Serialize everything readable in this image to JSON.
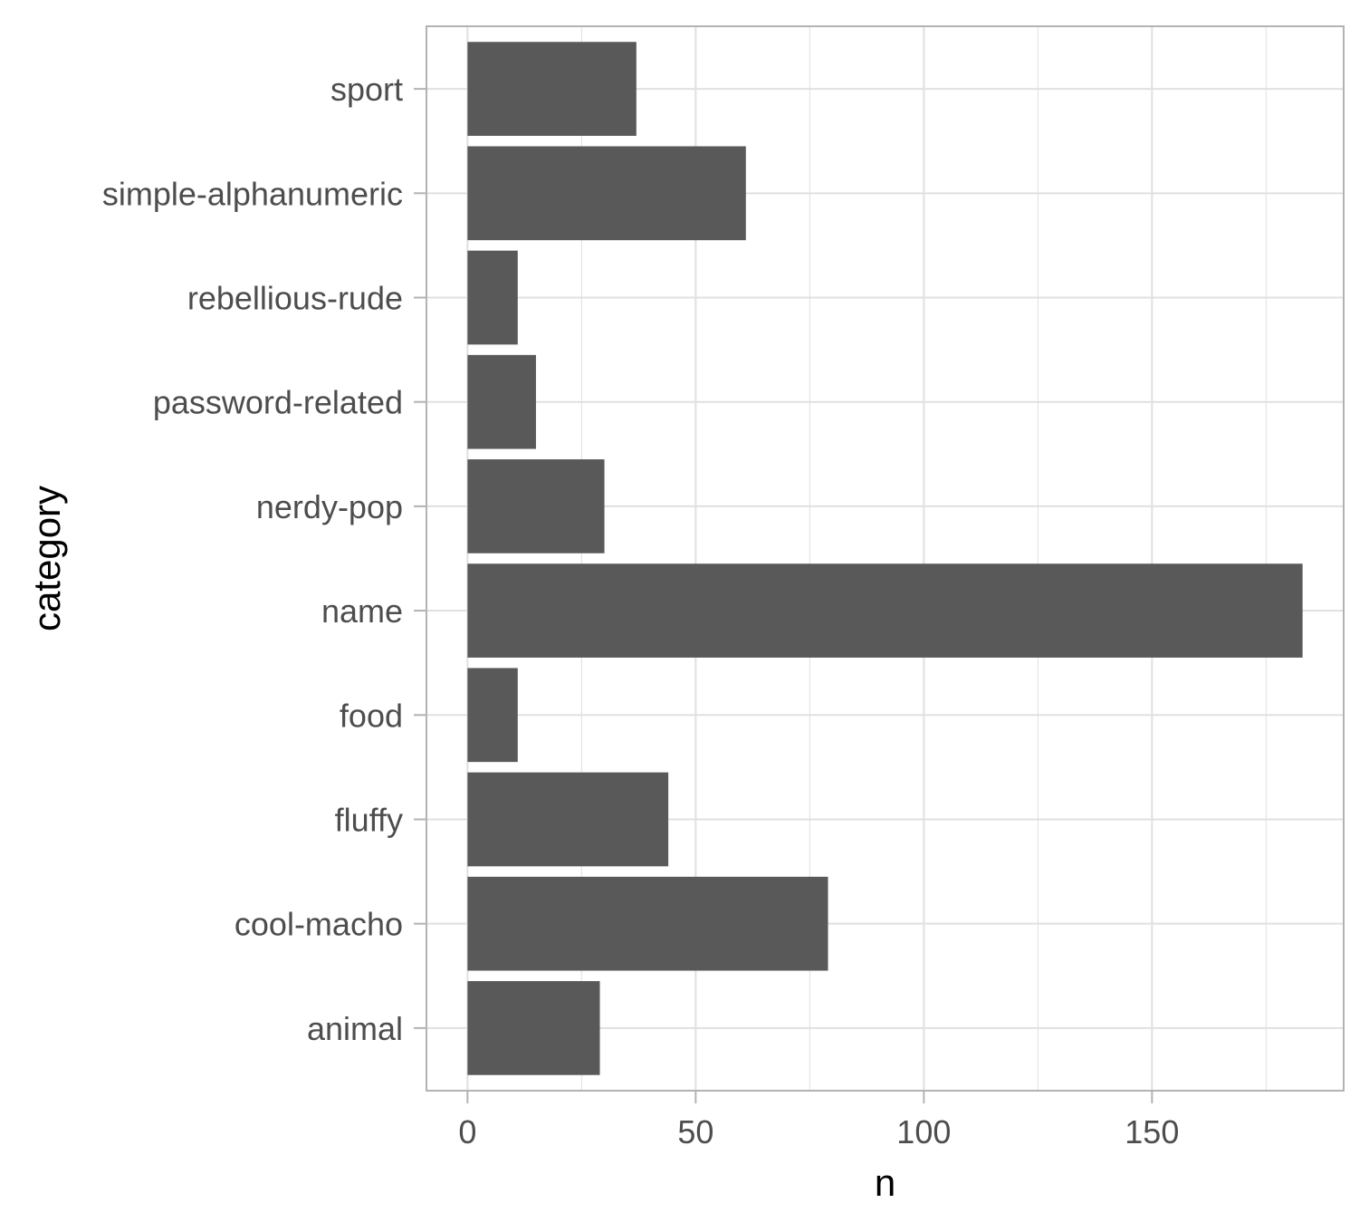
{
  "chart_data": {
    "type": "bar",
    "orientation": "horizontal",
    "categories": [
      "animal",
      "cool-macho",
      "fluffy",
      "food",
      "name",
      "nerdy-pop",
      "password-related",
      "rebellious-rude",
      "simple-alphanumeric",
      "sport"
    ],
    "values": [
      29,
      79,
      44,
      11,
      183,
      30,
      15,
      11,
      61,
      37
    ],
    "xlabel": "n",
    "ylabel": "category",
    "xlim": [
      -9,
      192
    ],
    "x_ticks": [
      0,
      50,
      100,
      150
    ],
    "grid": true,
    "bar_color": "#595959",
    "grid_color": "#e0e0e0",
    "panel_border_color": "#b3b3b3"
  }
}
